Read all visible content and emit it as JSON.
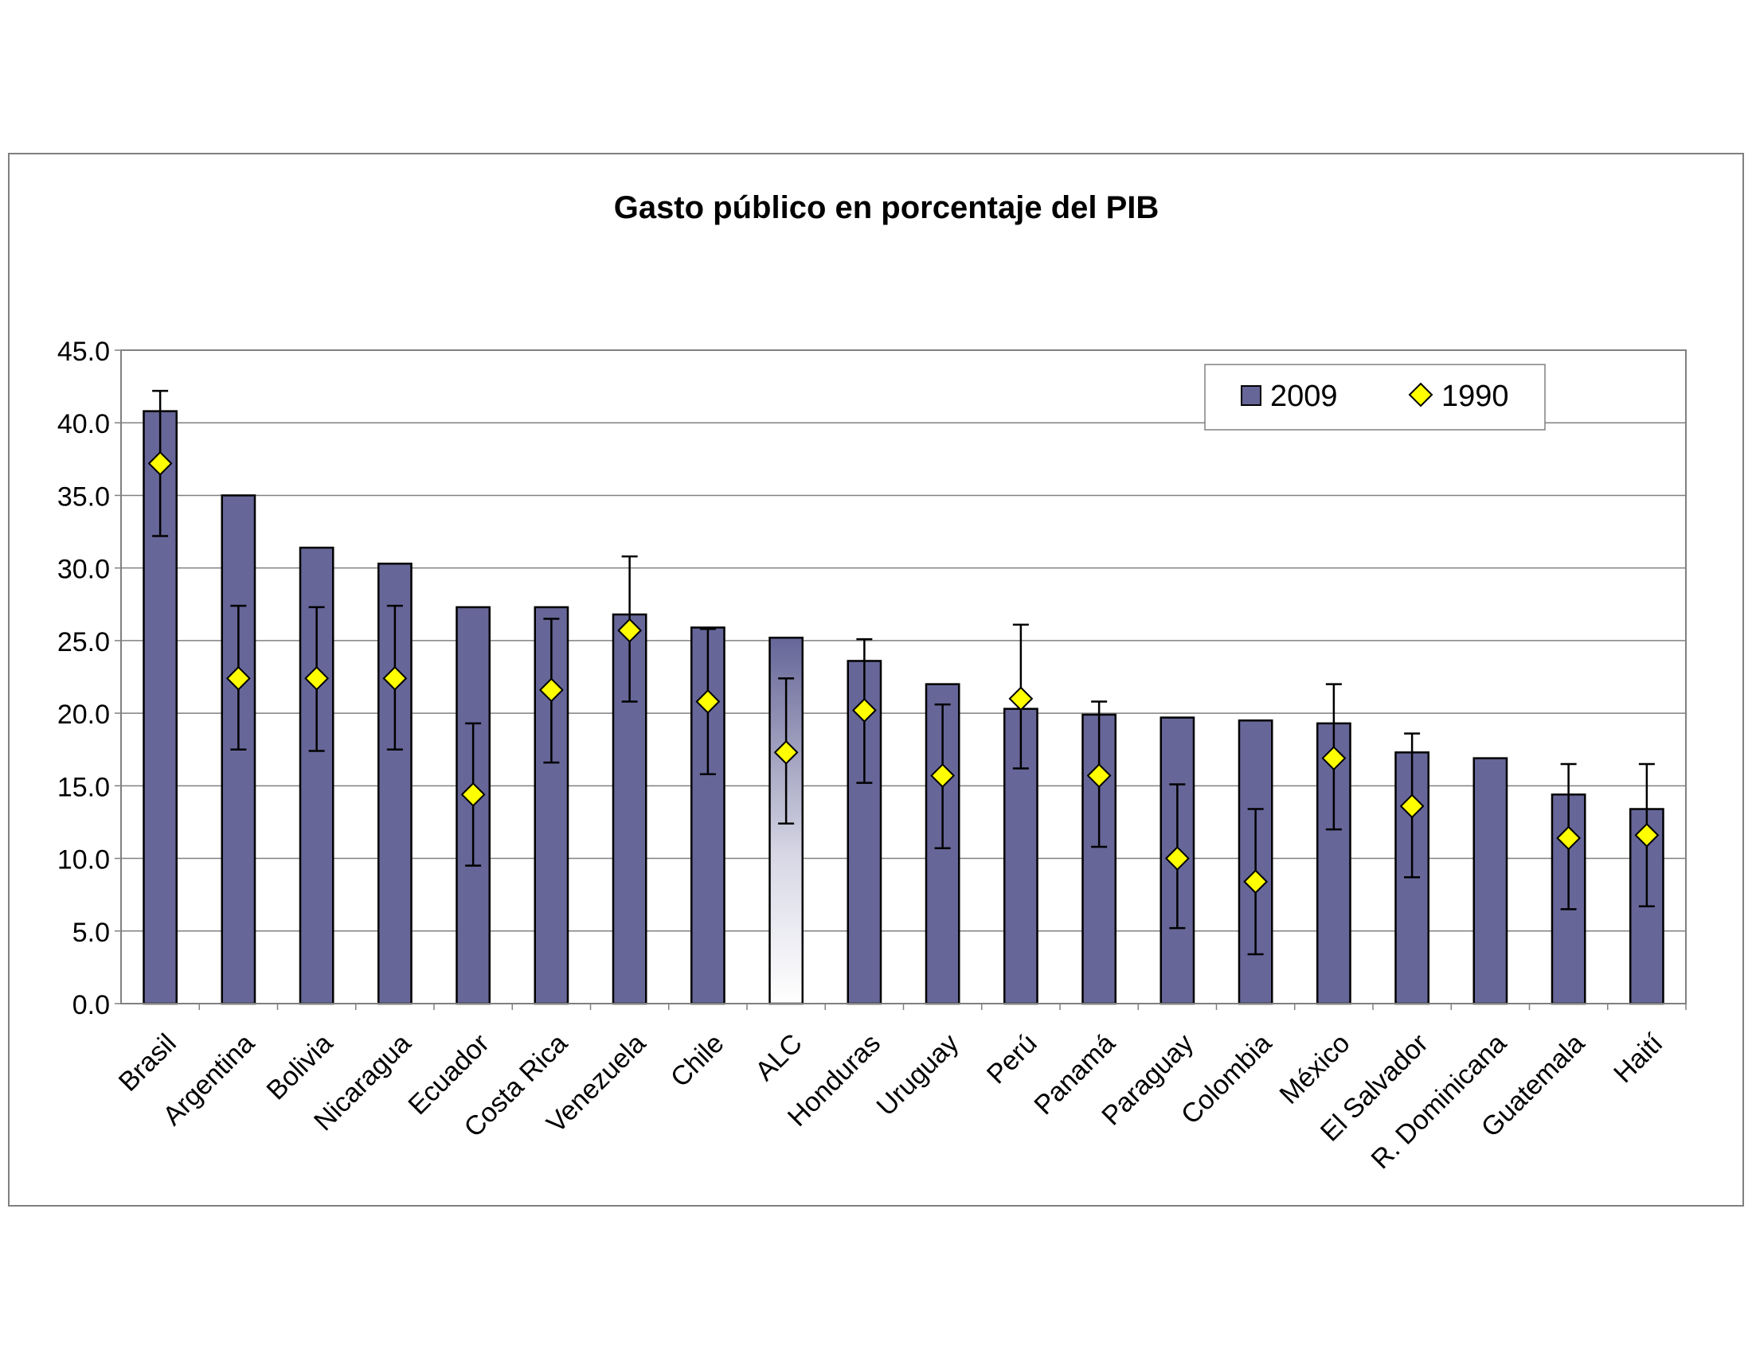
{
  "chart_data": {
    "type": "bar",
    "title": "Gasto público en porcentaje del PIB",
    "xlabel": "",
    "ylabel": "",
    "ylim": [
      0,
      45
    ],
    "yticks": [
      "0.0",
      "5.0",
      "10.0",
      "15.0",
      "20.0",
      "25.0",
      "30.0",
      "35.0",
      "40.0",
      "45.0"
    ],
    "grid": true,
    "legend_position": "top-right",
    "categories": [
      "Brasil",
      "Argentina",
      "Bolivia",
      "Nicaragua",
      "Ecuador",
      "Costa Rica",
      "Venezuela",
      "Chile",
      "ALC",
      "Honduras",
      "Uruguay",
      "Perú",
      "Panamá",
      "Paraguay",
      "Colombia",
      "México",
      "El Salvador",
      "R. Dominicana",
      "Guatemala",
      "Haití"
    ],
    "series": [
      {
        "name": "2009",
        "type": "bar",
        "color": "#666699",
        "highlight": {
          "category": "ALC",
          "fill": "gradient-white"
        },
        "values": [
          40.8,
          35.0,
          31.4,
          30.3,
          27.3,
          27.3,
          26.8,
          25.9,
          25.2,
          23.6,
          22.0,
          20.3,
          19.9,
          19.7,
          19.5,
          19.3,
          17.3,
          16.9,
          14.4,
          13.4
        ]
      },
      {
        "name": "1990",
        "type": "scatter",
        "marker": "diamond",
        "color": "#ffff00",
        "values": [
          37.2,
          22.4,
          22.4,
          22.4,
          14.4,
          21.6,
          25.7,
          20.8,
          17.3,
          20.2,
          15.7,
          21.0,
          15.7,
          10.0,
          8.4,
          16.9,
          13.6,
          null,
          11.4,
          11.6
        ],
        "error_low": [
          32.2,
          17.5,
          17.4,
          17.5,
          9.5,
          16.6,
          20.8,
          15.8,
          12.4,
          15.2,
          10.7,
          16.2,
          10.8,
          5.2,
          3.4,
          12.0,
          8.7,
          null,
          6.5,
          6.7
        ],
        "error_high": [
          42.2,
          27.4,
          27.3,
          27.4,
          19.3,
          26.5,
          30.8,
          25.8,
          22.4,
          25.1,
          20.6,
          26.1,
          20.8,
          15.1,
          13.4,
          22.0,
          18.6,
          null,
          16.5,
          16.5
        ]
      }
    ]
  }
}
